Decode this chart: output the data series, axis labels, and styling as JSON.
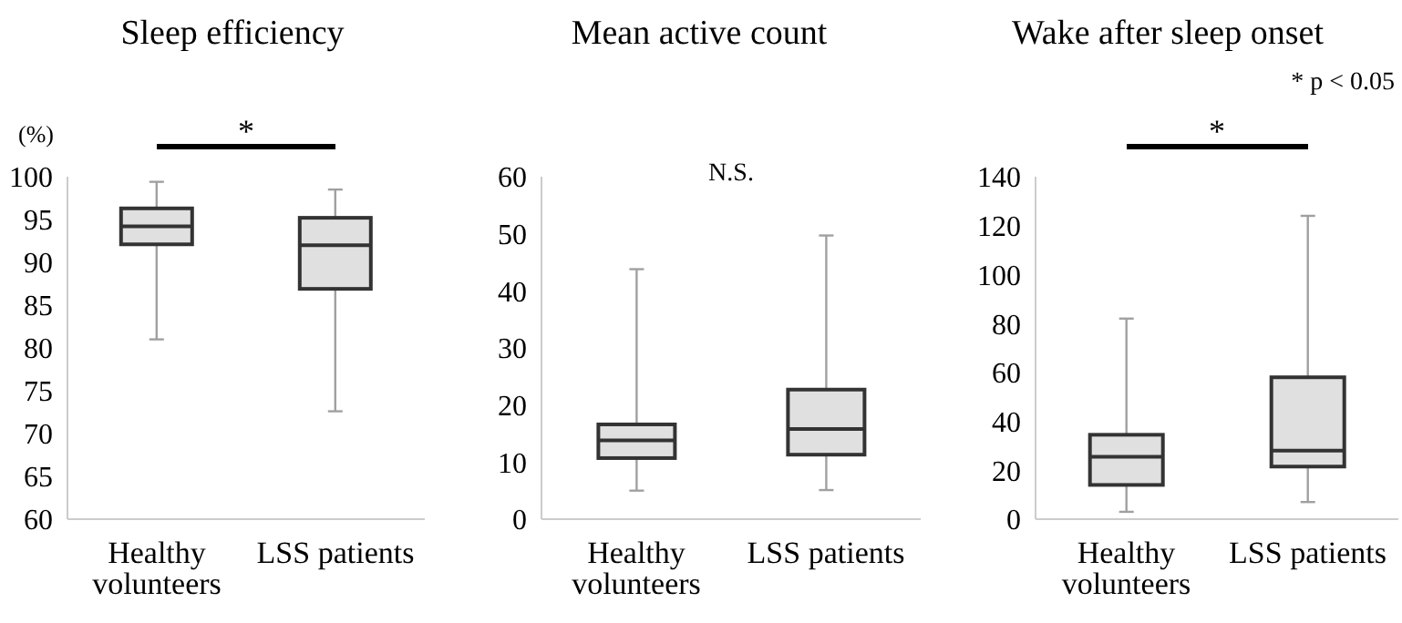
{
  "chart_data": [
    {
      "type": "box",
      "title": "Sleep efficiency",
      "ylabel": "(%)",
      "categories": [
        "Healthy volunteers",
        "LSS patients"
      ],
      "color": "#e0e0e0",
      "boxes": [
        {
          "low": 81,
          "q1": 92.1,
          "median": 94.2,
          "q3": 96.3,
          "high": 99.4
        },
        {
          "low": 72.6,
          "q1": 86.9,
          "median": 92,
          "q3": 95.2,
          "high": 98.5
        }
      ],
      "ylim": [
        60,
        100
      ],
      "yticks": [
        60,
        65,
        70,
        75,
        80,
        85,
        90,
        95,
        100
      ],
      "grid": false,
      "annotations": [
        "*"
      ]
    },
    {
      "type": "box",
      "title": "Mean active count",
      "categories": [
        "Healthy volunteers",
        "LSS patients"
      ],
      "color": "#e0e0e0",
      "boxes": [
        {
          "low": 5,
          "q1": 10.7,
          "median": 13.8,
          "q3": 16.6,
          "high": 43.8
        },
        {
          "low": 5.1,
          "q1": 11.3,
          "median": 15.8,
          "q3": 22.7,
          "high": 49.7
        }
      ],
      "ylim": [
        0,
        60
      ],
      "yticks": [
        0,
        10,
        20,
        30,
        40,
        50,
        60
      ],
      "grid": false,
      "annotations": [
        "N.S."
      ]
    },
    {
      "type": "box",
      "title": "Wake after sleep onset",
      "categories": [
        "Healthy volunteers",
        "LSS patients"
      ],
      "color": "#e0e0e0",
      "boxes": [
        {
          "low": 3,
          "q1": 14,
          "median": 25.5,
          "q3": 34.5,
          "high": 82
        },
        {
          "low": 7,
          "q1": 21.5,
          "median": 28,
          "q3": 58,
          "high": 124
        }
      ],
      "ylim": [
        0,
        140
      ],
      "yticks": [
        0,
        20,
        40,
        60,
        80,
        100,
        120,
        140
      ],
      "grid": false,
      "annotations": [
        "*",
        "* p < 0.05"
      ]
    }
  ]
}
